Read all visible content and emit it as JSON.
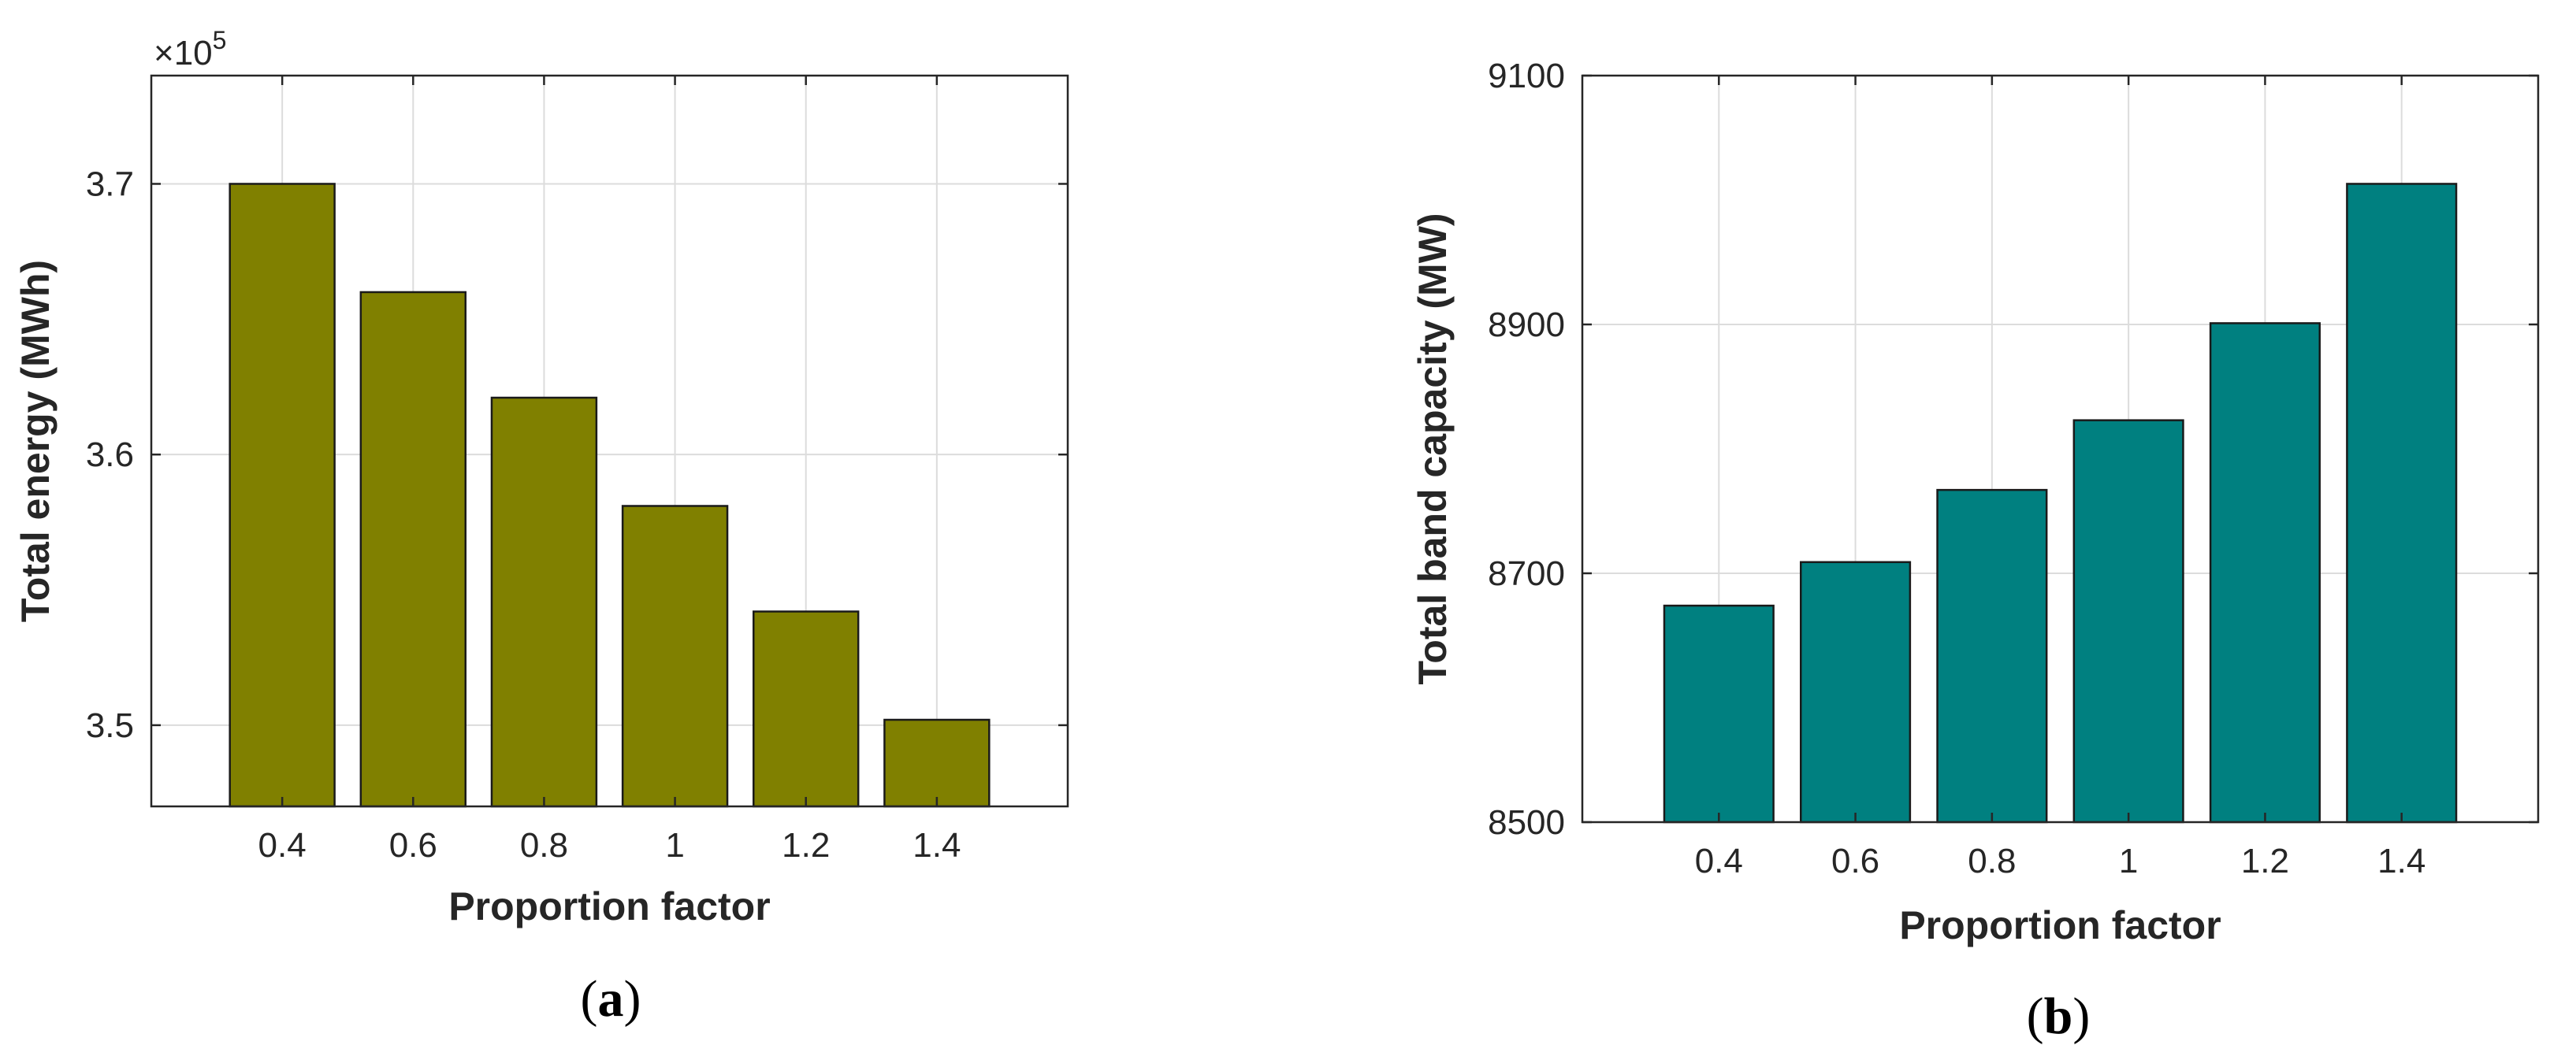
{
  "chart_data": [
    {
      "panel": "a",
      "type": "bar",
      "categories": [
        "0.4",
        "0.6",
        "0.8",
        "1",
        "1.2",
        "1.4"
      ],
      "values": [
        370000,
        366000,
        362100,
        358100,
        354200,
        350200
      ],
      "xlabel": "Proportion factor",
      "ylabel": "Total energy (MWh)",
      "yscale_label": "×10",
      "yscale_exponent": "5",
      "ylim": [
        347000,
        374000
      ],
      "yticks": [
        350000,
        360000,
        370000
      ],
      "ytick_labels": [
        "3.5",
        "3.6",
        "3.7"
      ],
      "grid": true,
      "bar_color": "#808000",
      "caption_open": "(",
      "caption_letter": "a",
      "caption_close": ")"
    },
    {
      "panel": "b",
      "type": "bar",
      "categories": [
        "0.4",
        "0.6",
        "0.8",
        "1",
        "1.2",
        "1.4"
      ],
      "values": [
        8674,
        8709,
        8767,
        8823,
        8901,
        9013
      ],
      "xlabel": "Proportion factor",
      "ylabel": "Total band capacity (MW)",
      "ylim": [
        8500,
        9100
      ],
      "yticks": [
        8500,
        8700,
        8900,
        9100
      ],
      "ytick_labels": [
        "8500",
        "8700",
        "8900",
        "9100"
      ],
      "grid": true,
      "bar_color": "#008080",
      "caption_open": "(",
      "caption_letter": "b",
      "caption_close": ")"
    }
  ]
}
